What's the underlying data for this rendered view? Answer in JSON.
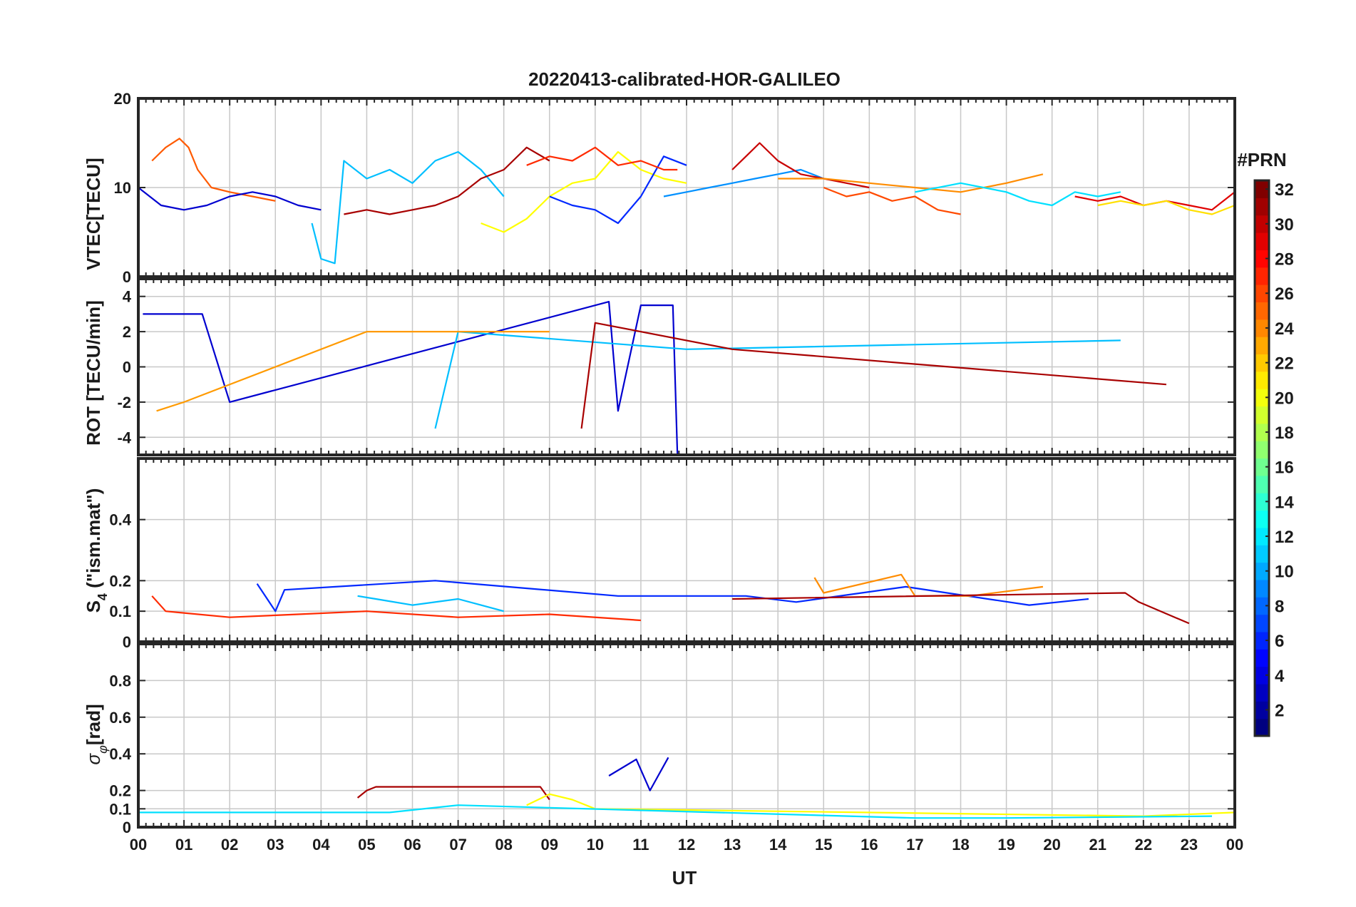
{
  "figure": {
    "title": "20220413-calibrated-HOR-GALILEO",
    "xlabel": "UT",
    "x_tick_labels": [
      "00",
      "01",
      "02",
      "03",
      "04",
      "05",
      "06",
      "07",
      "08",
      "09",
      "10",
      "11",
      "12",
      "13",
      "14",
      "15",
      "16",
      "17",
      "18",
      "19",
      "20",
      "21",
      "22",
      "23",
      "00"
    ],
    "colorbar": {
      "label": "#PRN",
      "range": [
        1,
        32
      ],
      "tick_labels": [
        "2",
        "4",
        "6",
        "8",
        "10",
        "12",
        "14",
        "16",
        "18",
        "20",
        "22",
        "24",
        "26",
        "28",
        "30",
        "32"
      ],
      "colormap": "jet"
    }
  },
  "chart_data": [
    {
      "type": "line",
      "panel": "vtec",
      "ylabel": "VTEC[TECU]",
      "ylim": [
        0,
        20
      ],
      "y_tick_labels": [
        "0",
        "10",
        "20"
      ],
      "xlim_hours": [
        0,
        24
      ],
      "grid": true,
      "series": [
        {
          "prn": 25,
          "color": "#ff5a00",
          "x": [
            0.3,
            0.6,
            0.9,
            1.1,
            1.3,
            1.6,
            2.0,
            2.5,
            3.0
          ],
          "y": [
            13,
            14.5,
            15.5,
            14.5,
            12,
            10,
            9.5,
            9,
            8.5
          ]
        },
        {
          "prn": 2,
          "color": "#0000cf",
          "x": [
            0.0,
            0.5,
            1.0,
            1.5,
            2.0,
            2.5,
            3.0,
            3.5,
            4.0
          ],
          "y": [
            10,
            8,
            7.5,
            8,
            9,
            9.5,
            9,
            8,
            7.5
          ]
        },
        {
          "prn": 12,
          "color": "#00bfff",
          "x": [
            3.8,
            4.0,
            4.3,
            4.5,
            5.0,
            5.5,
            6.0,
            6.5,
            7.0,
            7.5,
            8.0
          ],
          "y": [
            6,
            2,
            1.5,
            13,
            11,
            12,
            10.5,
            13,
            14,
            12,
            9
          ]
        },
        {
          "prn": 31,
          "color": "#a80000",
          "x": [
            4.5,
            5.0,
            5.5,
            6.0,
            6.5,
            7.0,
            7.5,
            8.0,
            8.5,
            9.0
          ],
          "y": [
            7,
            7.5,
            7,
            7.5,
            8,
            9,
            11,
            12,
            14.5,
            13
          ]
        },
        {
          "prn": 19,
          "color": "#ffff00",
          "x": [
            7.5,
            8.0,
            8.5,
            9.0,
            9.5,
            10.0,
            10.5,
            11.0,
            11.5,
            12.0
          ],
          "y": [
            6,
            5,
            6.5,
            9,
            10.5,
            11,
            14,
            12,
            11,
            10.5
          ]
        },
        {
          "prn": 5,
          "color": "#0028ff",
          "x": [
            9.0,
            9.5,
            10.0,
            10.5,
            11.0,
            11.5,
            12.0
          ],
          "y": [
            9,
            8,
            7.5,
            6,
            9,
            13.5,
            12.5
          ]
        },
        {
          "prn": 27,
          "color": "#ff2a00",
          "x": [
            8.5,
            9.0,
            9.5,
            10.0,
            10.5,
            11.0,
            11.5,
            11.8
          ],
          "y": [
            12.5,
            13.5,
            13,
            14.5,
            12.5,
            13,
            12,
            12
          ]
        },
        {
          "prn": 10,
          "color": "#0090ff",
          "x": [
            11.5,
            12.0,
            12.5,
            13.0,
            13.5,
            14.0,
            14.5,
            15.0
          ],
          "y": [
            9,
            9.5,
            10,
            10.5,
            11,
            11.5,
            12,
            11
          ]
        },
        {
          "prn": 30,
          "color": "#c80000",
          "x": [
            13.0,
            13.3,
            13.6,
            14.0,
            14.5,
            15.0,
            15.5,
            16.0
          ],
          "y": [
            12,
            13.5,
            15,
            13,
            11.5,
            11,
            10.5,
            10
          ]
        },
        {
          "prn": 24,
          "color": "#ff8c00",
          "x": [
            14.0,
            15.0,
            16.0,
            17.0,
            18.0,
            19.0,
            19.8
          ],
          "y": [
            11,
            11,
            10.5,
            10,
            9.5,
            10.5,
            11.5
          ]
        },
        {
          "prn": 26,
          "color": "#ff4a00",
          "x": [
            15.0,
            15.5,
            16.0,
            16.5,
            17.0,
            17.5,
            18.0
          ],
          "y": [
            10,
            9,
            9.5,
            8.5,
            9,
            7.5,
            7
          ]
        },
        {
          "prn": 13,
          "color": "#00e0ff",
          "x": [
            17.0,
            18.0,
            19.0,
            19.5,
            20.0,
            20.5,
            21.0,
            21.5
          ],
          "y": [
            9.5,
            10.5,
            9.5,
            8.5,
            8,
            9.5,
            9,
            9.5
          ]
        },
        {
          "prn": 29,
          "color": "#e00000",
          "x": [
            20.5,
            21.0,
            21.5,
            22.0,
            22.5,
            23.0,
            23.5,
            24.0
          ],
          "y": [
            9,
            8.5,
            9,
            8,
            8.5,
            8,
            7.5,
            9.5
          ]
        },
        {
          "prn": 20,
          "color": "#ffe000",
          "x": [
            21.0,
            21.5,
            22.0,
            22.5,
            23.0,
            23.5,
            24.0
          ],
          "y": [
            8,
            8.5,
            8,
            8.5,
            7.5,
            7,
            8
          ]
        }
      ]
    },
    {
      "type": "line",
      "panel": "rot",
      "ylabel": "ROT [TECU/min]",
      "ylim": [
        -5,
        5
      ],
      "y_tick_labels": [
        "-4",
        "-2",
        "0",
        "2",
        "4"
      ],
      "xlim_hours": [
        0,
        24
      ],
      "grid": true,
      "series": [
        {
          "prn": 2,
          "color": "#0000cf",
          "x": [
            0.1,
            1.4,
            2.0,
            10.3,
            10.5,
            11.0,
            11.7,
            11.8
          ],
          "y": [
            3,
            3,
            -2,
            3.7,
            -2.5,
            3.5,
            3.5,
            -5
          ]
        },
        {
          "prn": 12,
          "color": "#00bfff",
          "x": [
            6.5,
            7.0,
            12.0,
            21.5
          ],
          "y": [
            -3.5,
            2,
            1,
            1.5
          ]
        },
        {
          "prn": 31,
          "color": "#a80000",
          "x": [
            9.7,
            10.0,
            13.0,
            22.5
          ],
          "y": [
            -3.5,
            2.5,
            1,
            -1
          ]
        },
        {
          "prn": 22,
          "color": "#ff9a00",
          "x": [
            0.4,
            1.0,
            5.0,
            9.0
          ],
          "y": [
            -2.5,
            -2,
            2,
            2
          ]
        }
      ]
    },
    {
      "type": "line",
      "panel": "s4",
      "ylabel": "S4 (\"ism.mat\")",
      "ylim": [
        0,
        0.6
      ],
      "y_tick_labels": [
        "0",
        "0.1",
        "0.2",
        "0.4"
      ],
      "xlim_hours": [
        0,
        24
      ],
      "grid": true,
      "series": [
        {
          "prn": 27,
          "color": "#ff2a00",
          "x": [
            0.3,
            0.6,
            2.0,
            3.5,
            5.0,
            7.0,
            9.0,
            11.0
          ],
          "y": [
            0.15,
            0.1,
            0.08,
            0.09,
            0.1,
            0.08,
            0.09,
            0.07
          ]
        },
        {
          "prn": 5,
          "color": "#0028ff",
          "x": [
            2.6,
            3.0,
            3.2,
            6.5,
            10.5,
            13.3,
            14.4,
            16.8,
            19.5,
            20.8
          ],
          "y": [
            0.19,
            0.1,
            0.17,
            0.2,
            0.15,
            0.15,
            0.13,
            0.18,
            0.12,
            0.14
          ]
        },
        {
          "prn": 12,
          "color": "#00bfff",
          "x": [
            4.8,
            5.2,
            6.0,
            7.0,
            7.5,
            8.0
          ],
          "y": [
            0.15,
            0.14,
            0.12,
            0.14,
            0.12,
            0.1
          ]
        },
        {
          "prn": 24,
          "color": "#ff8c00",
          "x": [
            14.8,
            15.0,
            16.7,
            17.0,
            18.2,
            19.8
          ],
          "y": [
            0.21,
            0.16,
            0.22,
            0.15,
            0.15,
            0.18
          ]
        },
        {
          "prn": 31,
          "color": "#a80000",
          "x": [
            13.0,
            21.6,
            21.9,
            23.0
          ],
          "y": [
            0.14,
            0.16,
            0.13,
            0.06
          ]
        }
      ]
    },
    {
      "type": "line",
      "panel": "sigma_phi",
      "ylabel": "σφ [rad]",
      "ylim": [
        0,
        1
      ],
      "y_tick_labels": [
        "0",
        "0.1",
        "0.2",
        "0.4",
        "0.6",
        "0.8"
      ],
      "xlim_hours": [
        0,
        24
      ],
      "grid": true,
      "series": [
        {
          "prn": 31,
          "color": "#a80000",
          "x": [
            4.8,
            5.0,
            5.2,
            8.8,
            9.0
          ],
          "y": [
            0.16,
            0.2,
            0.22,
            0.22,
            0.15
          ]
        },
        {
          "prn": 2,
          "color": "#0000cf",
          "x": [
            10.3,
            10.9,
            11.2,
            11.6
          ],
          "y": [
            0.28,
            0.37,
            0.2,
            0.38
          ]
        },
        {
          "prn": 19,
          "color": "#ffff00",
          "x": [
            8.5,
            9.0,
            9.5,
            10.0,
            22.0,
            24.0
          ],
          "y": [
            0.12,
            0.18,
            0.15,
            0.1,
            0.06,
            0.08
          ]
        },
        {
          "prn": 13,
          "color": "#00e0ff",
          "x": [
            0.0,
            5.5,
            7.0,
            17.0,
            19.0,
            23.5
          ],
          "y": [
            0.08,
            0.08,
            0.12,
            0.05,
            0.05,
            0.06
          ]
        }
      ]
    }
  ]
}
